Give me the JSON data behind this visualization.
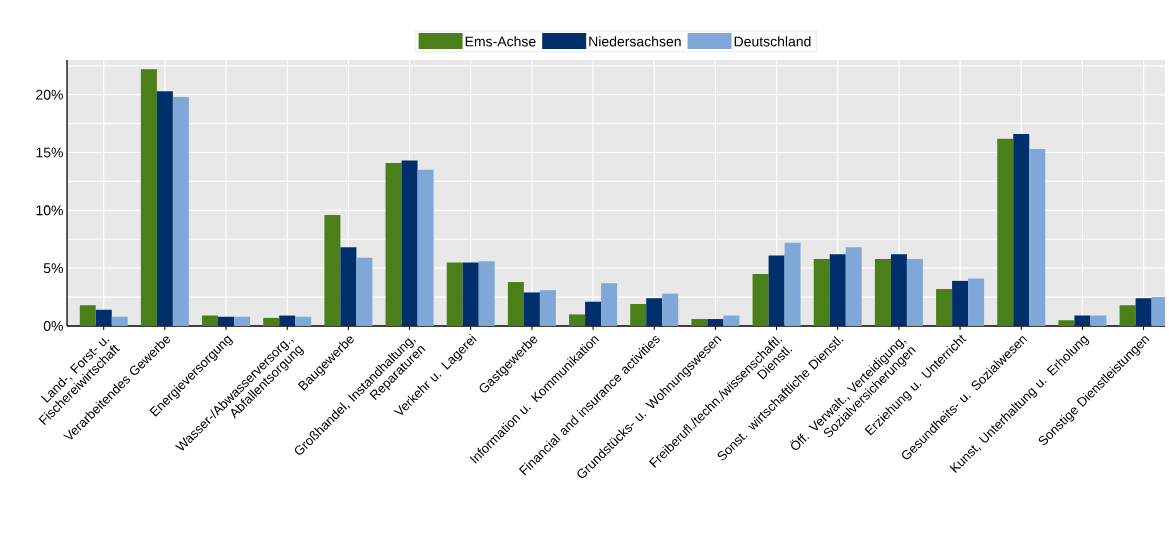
{
  "chart_data": {
    "type": "bar",
    "categories": [
      "Land-, Forst- u. Fischereiwirtschaft",
      "Verarbeitendes Gewerbe",
      "Energieversorgung",
      "Wasser-/Abwasserversorg., Abfallentsorgung",
      "Baugewerbe",
      "Großhandel, Instandhaltung, Reparaturen",
      "Verkehr u. Lagerei",
      "Gastgewerbe",
      "Information u. Kommunikation",
      "Financial and insurance activities",
      "Grundstücks- u. Wohnungswesen",
      "Freiberufl./techn./wissenschaftl. Dienstl.",
      "Sonst. wirtschaftliche Dienstl.",
      "Öff. Verwalt., Verteidigung, Sozialversicherungen",
      "Erziehung u. Unterricht",
      "Gesundheits- u. Sozialwesen",
      "Kunst, Unterhaltung u. Erholung",
      "Sonstige Dienstleistungen"
    ],
    "series": [
      {
        "name": "Ems-Achse",
        "color": "#4a7f1a",
        "values": [
          1.8,
          22.2,
          0.9,
          0.7,
          9.6,
          14.1,
          5.5,
          3.8,
          1.0,
          1.9,
          0.6,
          4.5,
          5.8,
          5.8,
          3.2,
          16.2,
          0.5,
          1.8
        ]
      },
      {
        "name": "Niedersachsen",
        "color": "#002f6c",
        "values": [
          1.4,
          20.3,
          0.8,
          0.9,
          6.8,
          14.3,
          5.5,
          2.9,
          2.1,
          2.4,
          0.6,
          6.1,
          6.2,
          6.2,
          3.9,
          16.6,
          0.9,
          2.4
        ]
      },
      {
        "name": "Deutschland",
        "color": "#7fa8d9",
        "values": [
          0.8,
          19.8,
          0.8,
          0.8,
          5.9,
          13.5,
          5.6,
          3.1,
          3.7,
          2.8,
          0.9,
          7.2,
          6.8,
          5.8,
          4.1,
          15.3,
          0.9,
          2.5
        ]
      }
    ],
    "ylim": [
      0,
      23
    ],
    "yticks": [
      {
        "value": 0,
        "label": "0%"
      },
      {
        "value": 2.5,
        "label": null
      },
      {
        "value": 5,
        "label": "5%"
      },
      {
        "value": 7.5,
        "label": null
      },
      {
        "value": 10,
        "label": "10%"
      },
      {
        "value": 12.5,
        "label": null
      },
      {
        "value": 15,
        "label": "15%"
      },
      {
        "value": 17.5,
        "label": null
      },
      {
        "value": 20,
        "label": "20%"
      },
      {
        "value": 22.5,
        "label": null
      }
    ],
    "grid": true,
    "legend": "top"
  }
}
